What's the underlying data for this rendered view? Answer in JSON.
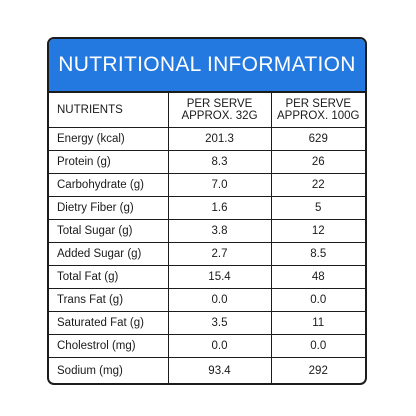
{
  "title": "NUTRITIONAL INFORMATION",
  "columns": {
    "nutrients": "NUTRIENTS",
    "per_serve_line1": "PER SERVE",
    "per_serve_line2": "APPROX. 32G",
    "per_100_line1": "PER SERVE",
    "per_100_line2": "APPROX. 100G"
  },
  "rows": [
    {
      "name": "Energy (kcal)",
      "serve": "201.3",
      "per100": "629"
    },
    {
      "name": "Protein (g)",
      "serve": "8.3",
      "per100": "26"
    },
    {
      "name": "Carbohydrate (g)",
      "serve": "7.0",
      "per100": "22"
    },
    {
      "name": "Dietry Fiber (g)",
      "serve": "1.6",
      "per100": "5"
    },
    {
      "name": "Total Sugar (g)",
      "serve": "3.8",
      "per100": "12"
    },
    {
      "name": "Added Sugar (g)",
      "serve": "2.7",
      "per100": "8.5"
    },
    {
      "name": "Total Fat (g)",
      "serve": "15.4",
      "per100": "48"
    },
    {
      "name": "Trans Fat (g)",
      "serve": "0.0",
      "per100": "0.0"
    },
    {
      "name": "Saturated Fat (g)",
      "serve": "3.5",
      "per100": "11"
    },
    {
      "name": "Cholestrol (mg)",
      "serve": "0.0",
      "per100": "0.0"
    },
    {
      "name": "Sodium (mg)",
      "serve": "93.4",
      "per100": "292"
    }
  ],
  "colors": {
    "header_bg": "#2379e0",
    "border": "#1c1c1c"
  }
}
